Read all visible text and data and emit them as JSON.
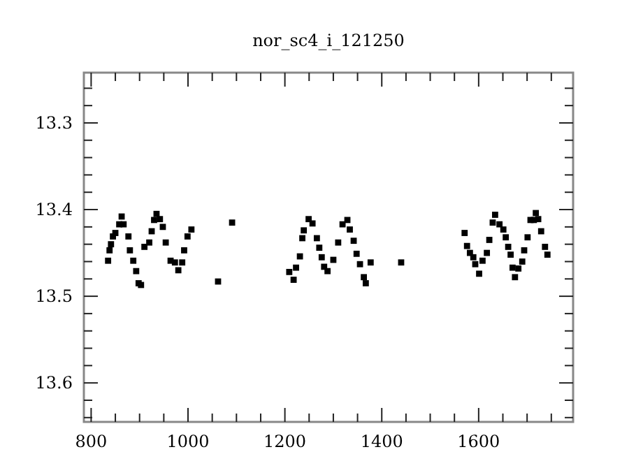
{
  "chart_data": {
    "type": "scatter",
    "title": "nor_sc4_i_121250",
    "marker": "square",
    "grid": false,
    "xlim": [
      785,
      1795
    ],
    "ylim": [
      13.645,
      13.242
    ],
    "xticks": [
      800,
      {
        "value": 850,
        "label": null
      },
      {
        "value": 900,
        "label": null
      },
      {
        "value": 950,
        "label": null
      },
      1000,
      {
        "value": 1050,
        "label": null
      },
      {
        "value": 1100,
        "label": null
      },
      {
        "value": 1150,
        "label": null
      },
      1200,
      {
        "value": 1250,
        "label": null
      },
      {
        "value": 1300,
        "label": null
      },
      {
        "value": 1350,
        "label": null
      },
      1400,
      {
        "value": 1450,
        "label": null
      },
      {
        "value": 1500,
        "label": null
      },
      {
        "value": 1550,
        "label": null
      },
      1600,
      {
        "value": 1650,
        "label": null
      },
      {
        "value": 1700,
        "label": null
      },
      {
        "value": 1750,
        "label": null
      }
    ],
    "yticks": [
      {
        "value": 13.26,
        "label": null
      },
      {
        "value": 13.28,
        "label": null
      },
      13.3,
      {
        "value": 13.32,
        "label": null
      },
      {
        "value": 13.34,
        "label": null
      },
      {
        "value": 13.36,
        "label": null
      },
      {
        "value": 13.38,
        "label": null
      },
      13.4,
      {
        "value": 13.42,
        "label": null
      },
      {
        "value": 13.44,
        "label": null
      },
      {
        "value": 13.46,
        "label": null
      },
      {
        "value": 13.48,
        "label": null
      },
      13.5,
      {
        "value": 13.52,
        "label": null
      },
      {
        "value": 13.54,
        "label": null
      },
      {
        "value": 13.56,
        "label": null
      },
      {
        "value": 13.58,
        "label": null
      },
      13.6,
      {
        "value": 13.62,
        "label": null
      },
      {
        "value": 13.64,
        "label": null
      }
    ],
    "series": [
      {
        "color": "#000000",
        "x": [
          835,
          838,
          841,
          845,
          850,
          858,
          863,
          867,
          877,
          880,
          887,
          893,
          898,
          903,
          910,
          920,
          925,
          930,
          935,
          942,
          948,
          954,
          964,
          973,
          980,
          988,
          992,
          999,
          1007,
          1062,
          1091,
          1209,
          1218,
          1223,
          1231,
          1236,
          1239,
          1249,
          1257,
          1266,
          1271,
          1276,
          1281,
          1288,
          1300,
          1310,
          1319,
          1329,
          1334,
          1342,
          1348,
          1355,
          1363,
          1367,
          1377,
          1440,
          1571,
          1576,
          1582,
          1589,
          1593,
          1601,
          1608,
          1617,
          1622,
          1629,
          1634,
          1643,
          1651,
          1656,
          1661,
          1666,
          1670,
          1675,
          1682,
          1690,
          1694,
          1701,
          1707,
          1714,
          1718,
          1723,
          1729,
          1737,
          1742
        ],
        "values": [
          13.459,
          13.447,
          13.44,
          13.431,
          13.427,
          13.417,
          13.408,
          13.417,
          13.431,
          13.447,
          13.459,
          13.471,
          13.485,
          13.487,
          13.443,
          13.438,
          13.425,
          13.412,
          13.405,
          13.411,
          13.42,
          13.438,
          13.459,
          13.461,
          13.47,
          13.461,
          13.447,
          13.431,
          13.423,
          13.483,
          13.415,
          13.472,
          13.481,
          13.467,
          13.454,
          13.433,
          13.424,
          13.411,
          13.416,
          13.433,
          13.444,
          13.455,
          13.466,
          13.471,
          13.458,
          13.438,
          13.417,
          13.412,
          13.423,
          13.436,
          13.451,
          13.463,
          13.478,
          13.485,
          13.461,
          13.461,
          13.427,
          13.442,
          13.45,
          13.455,
          13.463,
          13.474,
          13.459,
          13.45,
          13.435,
          13.415,
          13.406,
          13.417,
          13.423,
          13.432,
          13.443,
          13.452,
          13.467,
          13.478,
          13.468,
          13.46,
          13.447,
          13.432,
          13.412,
          13.412,
          13.404,
          13.411,
          13.425,
          13.443,
          13.452
        ]
      }
    ]
  }
}
